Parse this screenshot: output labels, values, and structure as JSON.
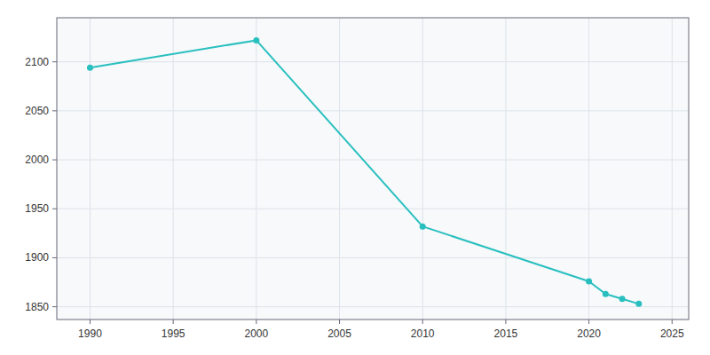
{
  "chart_data": {
    "type": "line",
    "x": [
      1990,
      2000,
      2010,
      2020,
      2021,
      2022,
      2023
    ],
    "values": [
      2094,
      2122,
      1932,
      1876,
      1863,
      1858,
      1853
    ],
    "color": "#29BFBF",
    "marker": "circle",
    "xlim": [
      1988,
      2026
    ],
    "ylim": [
      1837,
      2145
    ],
    "xticks": [
      1990,
      1995,
      2000,
      2005,
      2010,
      2015,
      2020,
      2025
    ],
    "yticks": [
      1850,
      1900,
      1950,
      2000,
      2050,
      2100
    ],
    "grid": true
  }
}
